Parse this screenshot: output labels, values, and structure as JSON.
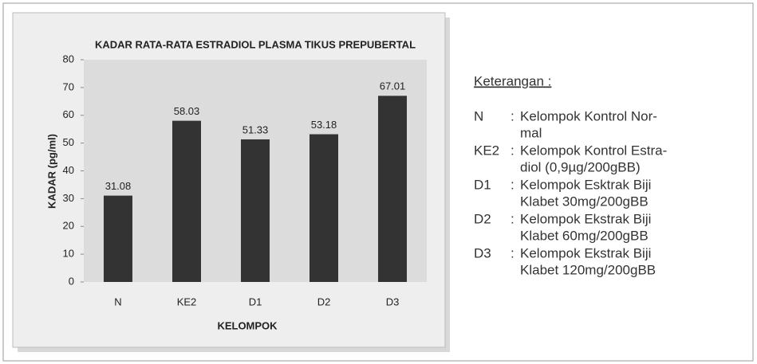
{
  "chart_data": {
    "type": "bar",
    "title": "KADAR RATA-RATA ESTRADIOL PLASMA TIKUS PREPUBERTAL",
    "x_label": "KELOMPOK",
    "y_label": "KADAR (pg/ml)",
    "categories": [
      "N",
      "KE2",
      "D1",
      "D2",
      "D3"
    ],
    "values": [
      31.08,
      58.03,
      51.33,
      53.18,
      67.01
    ],
    "color": "#333333",
    "ylim": [
      0,
      80
    ],
    "yticks": [
      0,
      10,
      20,
      30,
      40,
      50,
      60,
      70,
      80
    ],
    "grid": false
  },
  "legend_block": {
    "heading": "Keterangan :",
    "items": [
      {
        "code": "N",
        "sep": ":",
        "lines": [
          "Kelompok Kontrol Nor-",
          "mal"
        ]
      },
      {
        "code": "KE2",
        "sep": ":",
        "lines": [
          "Kelompok Kontrol Estra-",
          "diol (0,9µg/200gBB)"
        ]
      },
      {
        "code": "D1",
        "sep": ":",
        "lines": [
          "Kelompok Esktrak Biji",
          "Klabet 30mg/200gBB"
        ]
      },
      {
        "code": "D2",
        "sep": ":",
        "lines": [
          "Kelompok Ekstrak Biji",
          "Klabet 60mg/200gBB"
        ]
      },
      {
        "code": "D3",
        "sep": ":",
        "lines": [
          "Kelompok Ekstrak Biji",
          "Klabet 120mg/200gBB"
        ]
      }
    ]
  }
}
